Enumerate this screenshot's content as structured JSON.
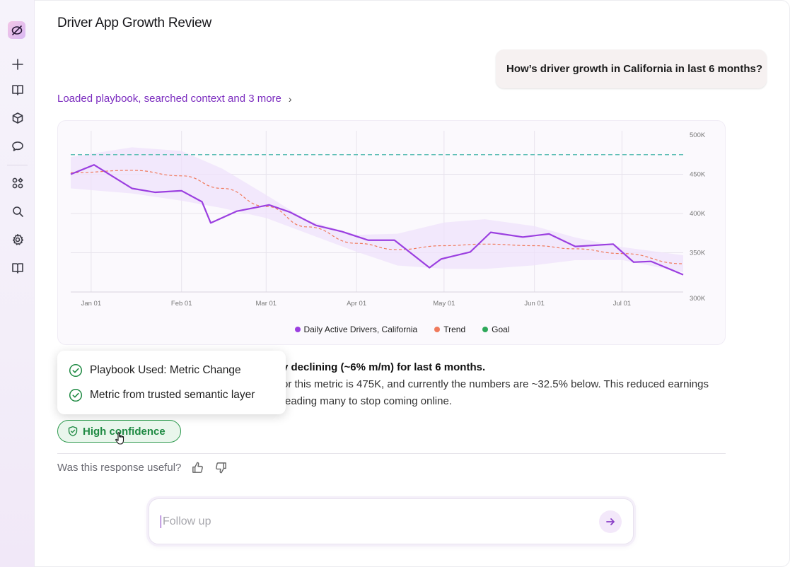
{
  "header": {
    "title": "Driver App Growth Review"
  },
  "sidebar": {
    "items": [
      {
        "name": "new-chat",
        "icon": "plus-icon"
      },
      {
        "name": "library",
        "icon": "book-icon"
      },
      {
        "name": "models",
        "icon": "cube-icon"
      },
      {
        "name": "chats",
        "icon": "chat-bubble-icon"
      },
      {
        "name": "apps",
        "icon": "grid-icon"
      },
      {
        "name": "search",
        "icon": "search-icon"
      },
      {
        "name": "settings",
        "icon": "gear-icon"
      },
      {
        "name": "docs",
        "icon": "book-open-icon"
      }
    ]
  },
  "conversation": {
    "user_question": "How’s driver growth in California in last 6 months?",
    "steps_link": "Loaded playbook, searched context and 3 more",
    "answer": {
      "headline_visible": "y declining (~6% m/m) for last 6 months.",
      "line2_visible": "or this metric is 475K, and currently the numbers are ~32.5% below. This reduced earnings",
      "line3_visible": "eading many to stop coming online."
    },
    "popover": {
      "items": [
        "Playbook Used: Metric Change",
        "Metric from trusted semantic layer"
      ]
    },
    "confidence_label": "High confidence",
    "feedback_prompt": "Was this response useful?"
  },
  "followup": {
    "placeholder": "Follow up"
  },
  "colors": {
    "accent": "#7b2cbf",
    "series": "#9b3fe0",
    "trend": "#f07a5c",
    "goal": "#5fbfb6",
    "confidence": "#1f8a43"
  },
  "chart_data": {
    "type": "line",
    "x_ticks": [
      "Jan 01",
      "Feb 01",
      "Mar 01",
      "Apr 01",
      "May 01",
      "Jun 01",
      "Jul 01"
    ],
    "y_ticks": [
      "500K",
      "450K",
      "400K",
      "350K",
      "300K"
    ],
    "ylim": [
      300000,
      500000
    ],
    "series": [
      {
        "name": "Daily Active Drivers, California",
        "color": "#9b3fe0",
        "x": [
          "2023-12-25",
          "2024-01-02",
          "2024-01-15",
          "2024-01-23",
          "2024-02-01",
          "2024-02-08",
          "2024-02-11",
          "2024-02-20",
          "2024-03-02",
          "2024-03-09",
          "2024-03-18",
          "2024-03-27",
          "2024-04-05",
          "2024-04-14",
          "2024-04-26",
          "2024-04-30",
          "2024-05-10",
          "2024-05-17",
          "2024-05-28",
          "2024-06-06",
          "2024-06-15",
          "2024-06-28",
          "2024-07-05",
          "2024-07-11",
          "2024-07-22"
        ],
        "values": [
          450000,
          462000,
          432000,
          427000,
          429000,
          415000,
          388000,
          403000,
          411000,
          402000,
          385000,
          377000,
          366000,
          366000,
          331000,
          342000,
          351000,
          376000,
          370000,
          374000,
          358000,
          361000,
          338000,
          339000,
          322000
        ]
      },
      {
        "name": "Trend",
        "color": "#f07a5c",
        "x": [
          "2023-12-25",
          "2024-01-15",
          "2024-02-01",
          "2024-02-15",
          "2024-03-01",
          "2024-03-15",
          "2024-04-01",
          "2024-04-15",
          "2024-05-01",
          "2024-05-15",
          "2024-06-01",
          "2024-06-15",
          "2024-07-01",
          "2024-07-22"
        ],
        "values": [
          452000,
          455000,
          448000,
          432000,
          409000,
          383000,
          362000,
          354000,
          359000,
          361000,
          359000,
          355000,
          349000,
          336000
        ]
      },
      {
        "name": "Goal",
        "color": "#5fbfb6",
        "x": [
          "2023-12-25",
          "2024-07-22"
        ],
        "values": [
          475000,
          475000
        ]
      }
    ]
  }
}
